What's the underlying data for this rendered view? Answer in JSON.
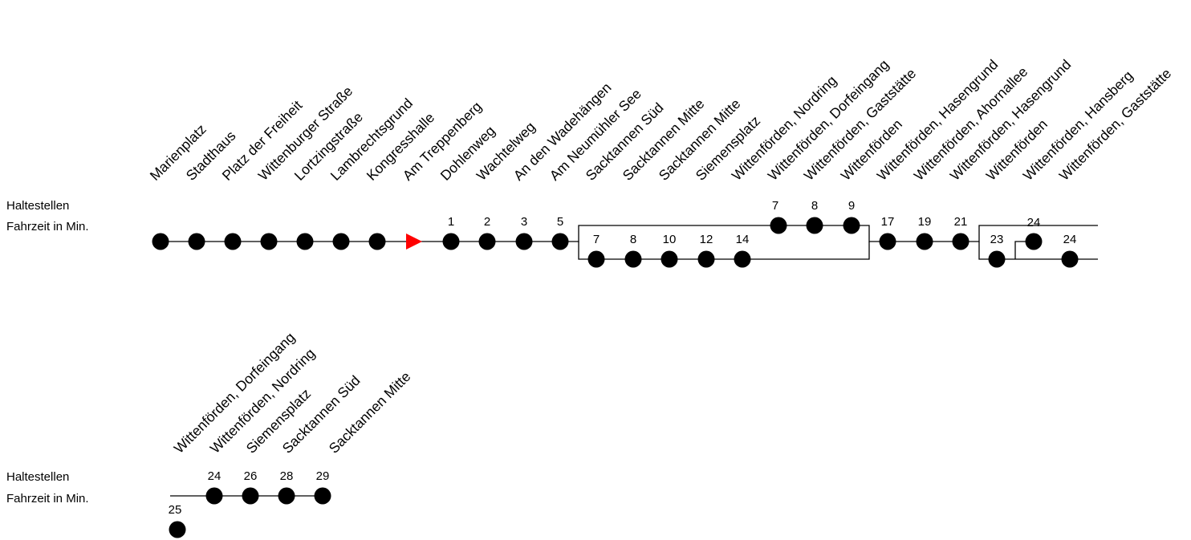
{
  "labels": {
    "row1": "Haltestellen",
    "row2": "Fahrzeit in Min."
  },
  "colors": {
    "stop": "#000000",
    "start_marker": "#ff0000"
  },
  "sections": [
    {
      "stops": [
        {
          "name": "Marienplatz",
          "time": ""
        },
        {
          "name": "Stadthaus",
          "time": ""
        },
        {
          "name": "Platz der Freiheit",
          "time": ""
        },
        {
          "name": "Wittenburger Straße",
          "time": ""
        },
        {
          "name": "Lortzingstraße",
          "time": ""
        },
        {
          "name": "Lambrechtsgrund",
          "time": ""
        },
        {
          "name": "Kongresshalle",
          "time": ""
        },
        {
          "name": "Am Treppenberg",
          "time": "",
          "marker": "start-arrow"
        },
        {
          "name": "Dohlenweg",
          "time": "1"
        },
        {
          "name": "Wachtelweg",
          "time": "2"
        },
        {
          "name": "An den Wadehängen",
          "time": "3"
        },
        {
          "name": "Am Neumühler See",
          "time": "5"
        },
        {
          "name": "Sacktannen Süd",
          "time": "7",
          "branch": "lower"
        },
        {
          "name": "Sacktannen Mitte",
          "time": "8",
          "branch": "lower"
        },
        {
          "name": "Sacktannen Mitte",
          "time": "10",
          "branch": "lower"
        },
        {
          "name": "Siemensplatz",
          "time": "12",
          "branch": "lower"
        },
        {
          "name": "Wittenförden, Nordring",
          "time": "14",
          "branch": "lower"
        },
        {
          "name": "Wittenförden, Dorfeingang",
          "time": "7",
          "branch": "upper"
        },
        {
          "name": "Wittenförden, Gaststätte",
          "time": "8",
          "branch": "upper"
        },
        {
          "name": "Wittenförden",
          "time": "9",
          "branch": "upper"
        },
        {
          "name": "Wittenförden, Hasengrund",
          "time": "17"
        },
        {
          "name": "Wittenförden, Ahornallee",
          "time": "19"
        },
        {
          "name": "Wittenförden, Hasengrund",
          "time": "21"
        },
        {
          "name": "Wittenförden",
          "time": "23",
          "branch": "lower"
        },
        {
          "name": "Wittenförden, Hansberg",
          "time": "24",
          "branch": "upper"
        },
        {
          "name": "Wittenförden, Gaststätte",
          "time": "24",
          "branch": "lower"
        }
      ]
    },
    {
      "stops": [
        {
          "name": "Wittenförden, Dorfeingang",
          "time": "24"
        },
        {
          "name": "Wittenförden, Nordring",
          "time": "26"
        },
        {
          "name": "Siemensplatz",
          "time": "28"
        },
        {
          "name": "Sacktannen Süd",
          "time": "29"
        },
        {
          "name": "Sacktannen Mitte",
          "time": "25"
        }
      ]
    }
  ]
}
